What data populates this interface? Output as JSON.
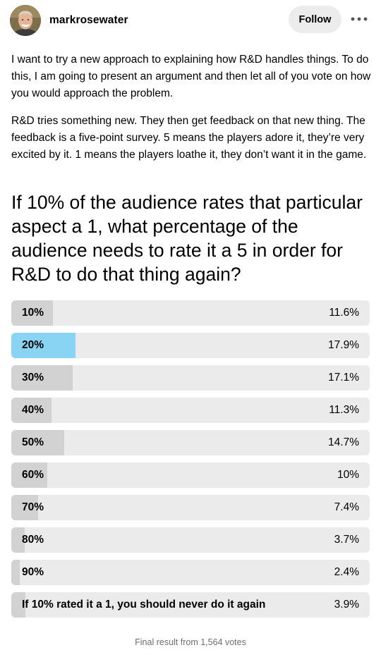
{
  "post": {
    "author": "markrosewater",
    "follow_label": "Follow",
    "more_icon": "ellipsis-icon",
    "avatar_icon": "user-avatar",
    "paragraphs": [
      "I want to try a new approach to explaining how R&D handles things. To do this, I am going to present an argument and then let all of you vote on how you would approach the problem.",
      "R&D tries something new. They then get feedback on that new thing. The feedback is a five-point survey. 5 means the players adore it, they’re very excited by it. 1 means the players loathe it, they don’t want it in the game."
    ],
    "question": "If 10% of the audience rates that particular aspect a 1, what percentage of the audience needs to rate it a 5 in order for R&D to do that thing again?"
  },
  "poll": {
    "options": [
      {
        "label": "10%",
        "percent_text": "11.6%",
        "value": 11.6,
        "selected": false
      },
      {
        "label": "20%",
        "percent_text": "17.9%",
        "value": 17.9,
        "selected": true
      },
      {
        "label": "30%",
        "percent_text": "17.1%",
        "value": 17.1,
        "selected": false
      },
      {
        "label": "40%",
        "percent_text": "11.3%",
        "value": 11.3,
        "selected": false
      },
      {
        "label": "50%",
        "percent_text": "14.7%",
        "value": 14.7,
        "selected": false
      },
      {
        "label": "60%",
        "percent_text": "10%",
        "value": 10,
        "selected": false
      },
      {
        "label": "70%",
        "percent_text": "7.4%",
        "value": 7.4,
        "selected": false
      },
      {
        "label": "80%",
        "percent_text": "3.7%",
        "value": 3.7,
        "selected": false
      },
      {
        "label": "90%",
        "percent_text": "2.4%",
        "value": 2.4,
        "selected": false
      },
      {
        "label": "If 10% rated it a 1, you should never do it again",
        "percent_text": "3.9%",
        "value": 3.9,
        "selected": false
      }
    ],
    "footer": "Final result from 1,564 votes",
    "colors": {
      "track": "#ebebeb",
      "fill": "#d2d2d2",
      "selected_fill": "#89d3f3"
    }
  }
}
